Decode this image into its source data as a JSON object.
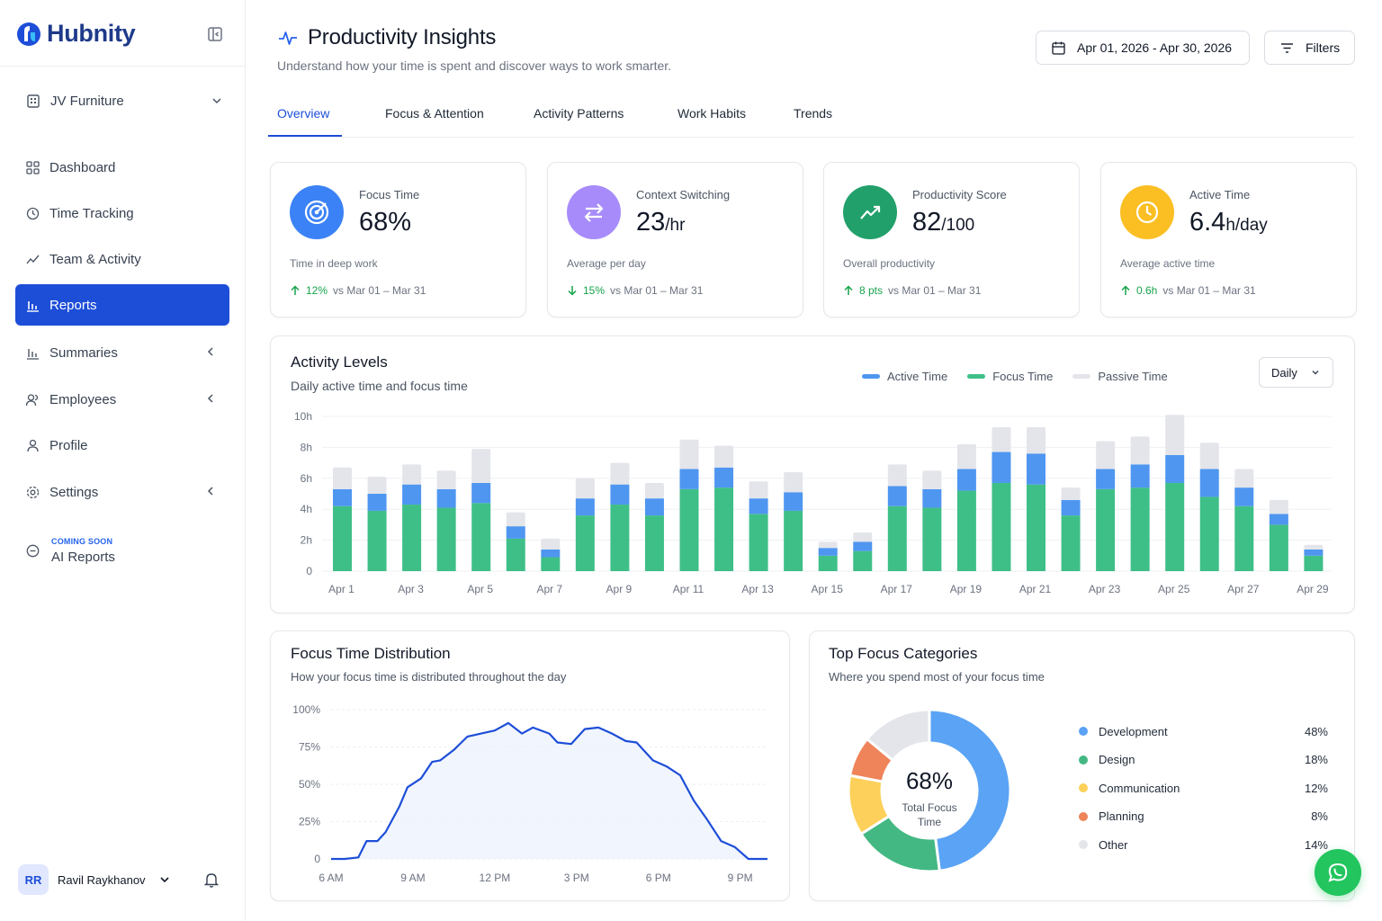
{
  "brand": {
    "name": "Hubnity"
  },
  "sidebar": {
    "org": "JV Furniture",
    "items": [
      {
        "label": "Dashboard"
      },
      {
        "label": "Time Tracking"
      },
      {
        "label": "Team & Activity"
      },
      {
        "label": "Reports",
        "active": true
      },
      {
        "label": "Summaries"
      },
      {
        "label": "Employees"
      },
      {
        "label": "Profile"
      },
      {
        "label": "Settings"
      }
    ],
    "coming_soon": {
      "tag": "COMING SOON",
      "label": "AI Reports"
    },
    "user": {
      "initials": "RR",
      "name": "Ravil Raykhanov"
    }
  },
  "header": {
    "title": "Productivity Insights",
    "subtitle": "Understand how your time is spent and discover ways to work smarter.",
    "date_range": "Apr 01, 2026 - Apr 30, 2026",
    "filters_label": "Filters"
  },
  "tabs": [
    "Overview",
    "Focus & Attention",
    "Activity Patterns",
    "Work Habits",
    "Trends"
  ],
  "kpis": [
    {
      "label": "Focus Time",
      "value": "68%",
      "unit": "",
      "desc": "Time in deep work",
      "delta": "12%",
      "direction": "up",
      "compare": "vs Mar 01 – Mar 31",
      "color": "#3b82f6"
    },
    {
      "label": "Context Switching",
      "value": "23",
      "unit": "/hr",
      "desc": "Average per day",
      "delta": "15%",
      "direction": "down",
      "compare": "vs Mar 01 – Mar 31",
      "color": "#a78bfa"
    },
    {
      "label": "Productivity Score",
      "value": "82",
      "unit": "/100",
      "desc": "Overall productivity",
      "delta": "8 pts",
      "direction": "up",
      "compare": "vs Mar 01 – Mar 31",
      "color": "#22a06b"
    },
    {
      "label": "Active Time",
      "value": "6.4",
      "unit": "h/day",
      "desc": "Average active time",
      "delta": "0.6h",
      "direction": "up",
      "compare": "vs Mar 01 – Mar 31",
      "color": "#fbbf24"
    }
  ],
  "activity": {
    "title": "Activity Levels",
    "subtitle": "Daily active time and focus time",
    "period": "Daily",
    "legend": [
      "Active Time",
      "Focus Time",
      "Passive Time"
    ],
    "colors": {
      "active": "#4f96f0",
      "focus": "#3fbf88",
      "passive": "#e3e5ea"
    }
  },
  "focus_dist": {
    "title": "Focus Time Distribution",
    "subtitle": "How your focus time is distributed throughout the day"
  },
  "categories": {
    "title": "Top Focus Categories",
    "subtitle": "Where you spend most of your focus time",
    "center_value": "68%",
    "center_label": "Total Focus Time",
    "items": [
      {
        "name": "Development",
        "pct": "48%",
        "color": "#5aa3f5"
      },
      {
        "name": "Design",
        "pct": "18%",
        "color": "#43b883"
      },
      {
        "name": "Communication",
        "pct": "12%",
        "color": "#fcd05a"
      },
      {
        "name": "Planning",
        "pct": "8%",
        "color": "#ef835a"
      },
      {
        "name": "Other",
        "pct": "14%",
        "color": "#e3e5ea"
      }
    ]
  },
  "chart_data": [
    {
      "type": "bar",
      "title": "Activity Levels",
      "stacked": true,
      "categories": [
        "Apr 1",
        "Apr 2",
        "Apr 3",
        "Apr 4",
        "Apr 5",
        "Apr 6",
        "Apr 7",
        "Apr 8",
        "Apr 9",
        "Apr 10",
        "Apr 11",
        "Apr 12",
        "Apr 13",
        "Apr 14",
        "Apr 15",
        "Apr 16",
        "Apr 17",
        "Apr 18",
        "Apr 19",
        "Apr 20",
        "Apr 21",
        "Apr 22",
        "Apr 23",
        "Apr 24",
        "Apr 25",
        "Apr 26",
        "Apr 27",
        "Apr 28",
        "Apr 29",
        "Apr 30"
      ],
      "x_tick_labels": [
        "Apr 1",
        "Apr 3",
        "Apr 5",
        "Apr 7",
        "Apr 9",
        "Apr 11",
        "Apr 13",
        "Apr 15",
        "Apr 17",
        "Apr 19",
        "Apr 21",
        "Apr 23",
        "Apr 25",
        "Apr 27",
        "Apr 29"
      ],
      "y_tick_labels": [
        "10h",
        "8h",
        "6h",
        "4h",
        "2h",
        "0"
      ],
      "ylim": [
        0,
        10
      ],
      "series": [
        {
          "name": "Focus Time",
          "values": [
            4.2,
            3.9,
            4.3,
            4.1,
            4.4,
            2.1,
            0.9,
            3.6,
            4.3,
            3.6,
            5.3,
            5.4,
            3.7,
            3.9,
            1.0,
            1.3,
            4.2,
            4.1,
            5.2,
            5.7,
            5.6,
            3.6,
            5.3,
            5.4,
            5.7,
            4.8,
            4.2,
            3.0,
            1.0,
            0.0
          ]
        },
        {
          "name": "Active Time",
          "values": [
            1.1,
            1.1,
            1.3,
            1.2,
            1.3,
            0.8,
            0.5,
            1.1,
            1.3,
            1.1,
            1.3,
            1.3,
            1.0,
            1.2,
            0.5,
            0.6,
            1.3,
            1.2,
            1.4,
            2.0,
            2.0,
            1.0,
            1.3,
            1.5,
            1.8,
            1.8,
            1.2,
            0.7,
            0.4,
            0.0
          ]
        },
        {
          "name": "Passive Time",
          "values": [
            1.4,
            1.1,
            1.3,
            1.2,
            2.2,
            0.9,
            0.7,
            1.3,
            1.4,
            1.0,
            1.9,
            1.4,
            1.1,
            1.3,
            0.4,
            0.6,
            1.4,
            1.2,
            1.6,
            1.6,
            1.7,
            0.8,
            1.8,
            1.8,
            2.6,
            1.7,
            1.2,
            0.9,
            0.3,
            0.0
          ]
        }
      ]
    },
    {
      "type": "area",
      "title": "Focus Time Distribution",
      "x_tick_labels": [
        "6 AM",
        "9 AM",
        "12 PM",
        "3 PM",
        "6 PM",
        "9 PM"
      ],
      "y_tick_labels": [
        "100%",
        "75%",
        "50%",
        "25%",
        "0"
      ],
      "ylim": [
        0,
        100
      ],
      "x_hours": [
        6,
        6.5,
        7,
        7.3,
        7.7,
        8,
        8.5,
        8.8,
        9.3,
        9.7,
        10,
        10.5,
        11,
        11.5,
        12,
        12.5,
        13,
        13.4,
        14,
        14.3,
        14.8,
        15.3,
        15.8,
        16.3,
        16.8,
        17.2,
        17.8,
        18.3,
        18.8,
        19.3,
        19.8,
        20.3,
        20.8,
        21.3,
        21.7,
        22
      ],
      "values": [
        0,
        0,
        1,
        12,
        12,
        18,
        35,
        48,
        54,
        65,
        66,
        73,
        82,
        84,
        86,
        91,
        84,
        88,
        84,
        78,
        77,
        87,
        88,
        84,
        79,
        78,
        66,
        62,
        56,
        39,
        26,
        12,
        8,
        0,
        0,
        0
      ]
    },
    {
      "type": "pie",
      "title": "Top Focus Categories",
      "labels": [
        "Development",
        "Design",
        "Communication",
        "Planning",
        "Other"
      ],
      "values": [
        48,
        18,
        12,
        8,
        14
      ]
    }
  ]
}
